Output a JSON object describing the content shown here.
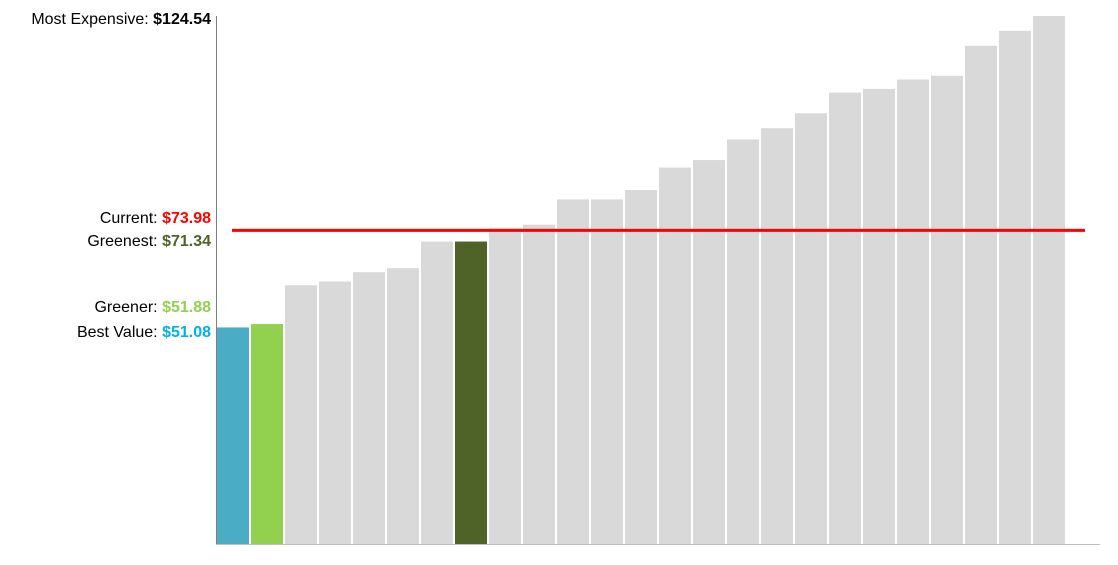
{
  "chart_data": {
    "type": "bar",
    "ylim": [
      0,
      124.54
    ],
    "values": [
      51.08,
      51.88,
      61.03,
      61.91,
      64.12,
      65.05,
      71.34,
      71.34,
      74.44,
      75.32,
      81.28,
      81.28,
      83.49,
      88.79,
      90.56,
      95.42,
      98.07,
      101.6,
      106.47,
      107.35,
      109.56,
      110.44,
      117.51,
      121.04,
      124.54
    ],
    "colors": [
      "#4BACC6",
      "#92D050",
      "#D9D9D9",
      "#D9D9D9",
      "#D9D9D9",
      "#D9D9D9",
      "#D9D9D9",
      "#4F6228",
      "#D9D9D9",
      "#D9D9D9",
      "#D9D9D9",
      "#D9D9D9",
      "#D9D9D9",
      "#D9D9D9",
      "#D9D9D9",
      "#D9D9D9",
      "#D9D9D9",
      "#D9D9D9",
      "#D9D9D9",
      "#D9D9D9",
      "#D9D9D9",
      "#D9D9D9",
      "#D9D9D9",
      "#D9D9D9",
      "#D9D9D9"
    ],
    "reference_line": {
      "value": 73.98,
      "color": "#FF0000"
    },
    "annotations": {
      "most_expensive": {
        "label": "Most Expensive: ",
        "value": "$124.54",
        "amount": 124.54,
        "color": "#000000"
      },
      "current": {
        "label": "Current: ",
        "value": "$73.98",
        "amount": 73.98,
        "color": "#FF0000"
      },
      "greenest": {
        "label": "Greenest: ",
        "value": "$71.34",
        "amount": 71.34,
        "color": "#4F6228"
      },
      "greener": {
        "label": "Greener: ",
        "value": "$51.88",
        "amount": 51.88,
        "color": "#92D050"
      },
      "best_value": {
        "label": "Best Value: ",
        "value": "$51.08",
        "amount": 51.08,
        "color": "#00B0F0"
      }
    }
  }
}
